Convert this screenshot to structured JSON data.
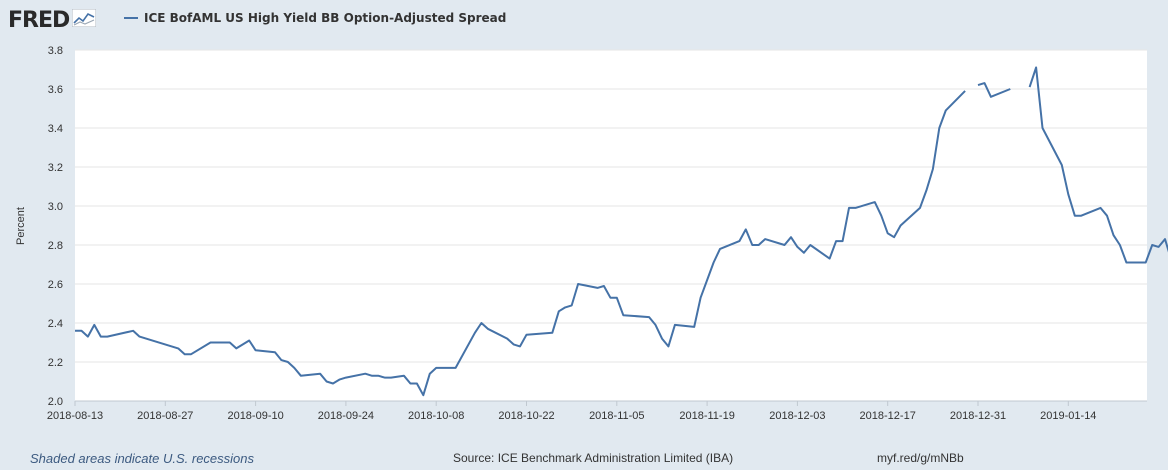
{
  "header": {
    "logo_text": "FRED",
    "logo_icon": "line-chart-icon"
  },
  "footer": {
    "recession_note": "Shaded areas indicate U.S. recessions",
    "source": "Source: ICE Benchmark Administration Limited (IBA)",
    "url": "myf.red/g/mNBb"
  },
  "colors": {
    "line": "#4572a7",
    "background": "#e1e9f0",
    "plot_background": "#ffffff",
    "grid": "#e6e6e6"
  },
  "chart_data": {
    "type": "line",
    "title": "",
    "xlabel": "",
    "ylabel": "Percent",
    "ylim": [
      2.0,
      3.8
    ],
    "xlim": [
      "2018-08-13",
      "2019-01-24"
    ],
    "grid": true,
    "legend_position": "top-left",
    "y_ticks": [
      "2.0",
      "2.2",
      "2.4",
      "2.6",
      "2.8",
      "3.0",
      "3.2",
      "3.4",
      "3.6",
      "3.8"
    ],
    "x_ticks": [
      "2018-08-13",
      "2018-08-27",
      "2018-09-10",
      "2018-09-24",
      "2018-10-08",
      "2018-10-22",
      "2018-11-05",
      "2018-11-19",
      "2018-12-03",
      "2018-12-17",
      "2018-12-31",
      "2019-01-14"
    ],
    "series": [
      {
        "name": "ICE BofAML US High Yield BB Option-Adjusted Spread",
        "segments": [
          [
            [
              "2018-08-13",
              2.36
            ],
            [
              "2018-08-14",
              2.36
            ],
            [
              "2018-08-15",
              2.33
            ],
            [
              "2018-08-16",
              2.39
            ],
            [
              "2018-08-17",
              2.33
            ],
            [
              "2018-08-18",
              2.33
            ],
            [
              "2018-08-22",
              2.36
            ],
            [
              "2018-08-23",
              2.33
            ],
            [
              "2018-08-29",
              2.27
            ],
            [
              "2018-08-30",
              2.24
            ],
            [
              "2018-08-31",
              2.24
            ],
            [
              "2018-09-03",
              2.3
            ],
            [
              "2018-09-06",
              2.3
            ],
            [
              "2018-09-07",
              2.27
            ],
            [
              "2018-09-09",
              2.31
            ],
            [
              "2018-09-10",
              2.26
            ],
            [
              "2018-09-13",
              2.25
            ],
            [
              "2018-09-14",
              2.21
            ],
            [
              "2018-09-15",
              2.2
            ],
            [
              "2018-09-16",
              2.17
            ],
            [
              "2018-09-17",
              2.13
            ],
            [
              "2018-09-20",
              2.14
            ],
            [
              "2018-09-21",
              2.1
            ],
            [
              "2018-09-22",
              2.09
            ],
            [
              "2018-09-23",
              2.11
            ],
            [
              "2018-09-24",
              2.12
            ],
            [
              "2018-09-27",
              2.14
            ],
            [
              "2018-09-28",
              2.13
            ],
            [
              "2018-09-29",
              2.13
            ],
            [
              "2018-09-30",
              2.12
            ],
            [
              "2018-10-01",
              2.12
            ],
            [
              "2018-10-03",
              2.13
            ],
            [
              "2018-10-04",
              2.09
            ],
            [
              "2018-10-05",
              2.09
            ],
            [
              "2018-10-06",
              2.03
            ],
            [
              "2018-10-07",
              2.14
            ],
            [
              "2018-10-08",
              2.17
            ],
            [
              "2018-10-11",
              2.17
            ],
            [
              "2018-10-14",
              2.35
            ],
            [
              "2018-10-15",
              2.4
            ],
            [
              "2018-10-16",
              2.37
            ],
            [
              "2018-10-19",
              2.32
            ],
            [
              "2018-10-20",
              2.29
            ],
            [
              "2018-10-21",
              2.28
            ],
            [
              "2018-10-22",
              2.34
            ],
            [
              "2018-10-26",
              2.35
            ],
            [
              "2018-10-27",
              2.46
            ],
            [
              "2018-10-28",
              2.48
            ],
            [
              "2018-10-29",
              2.49
            ],
            [
              "2018-10-30",
              2.6
            ],
            [
              "2018-11-02",
              2.58
            ],
            [
              "2018-11-03",
              2.59
            ],
            [
              "2018-11-04",
              2.53
            ],
            [
              "2018-11-05",
              2.53
            ],
            [
              "2018-11-06",
              2.44
            ],
            [
              "2018-11-10",
              2.43
            ],
            [
              "2018-11-11",
              2.39
            ],
            [
              "2018-11-12",
              2.32
            ],
            [
              "2018-11-13",
              2.28
            ],
            [
              "2018-11-14",
              2.39
            ],
            [
              "2018-11-17",
              2.38
            ],
            [
              "2018-11-18",
              2.53
            ],
            [
              "2018-11-19",
              2.62
            ],
            [
              "2018-11-20",
              2.71
            ],
            [
              "2018-11-21",
              2.78
            ],
            [
              "2018-11-24",
              2.82
            ],
            [
              "2018-11-25",
              2.88
            ],
            [
              "2018-11-26",
              2.8
            ],
            [
              "2018-11-27",
              2.8
            ],
            [
              "2018-11-28",
              2.83
            ],
            [
              "2018-12-01",
              2.8
            ],
            [
              "2018-12-02",
              2.84
            ],
            [
              "2018-12-03",
              2.79
            ],
            [
              "2018-12-04",
              2.76
            ],
            [
              "2018-12-05",
              2.8
            ],
            [
              "2018-12-08",
              2.73
            ],
            [
              "2018-12-09",
              2.82
            ],
            [
              "2018-12-10",
              2.82
            ],
            [
              "2018-12-11",
              2.99
            ],
            [
              "2018-12-12",
              2.99
            ],
            [
              "2018-12-15",
              3.02
            ],
            [
              "2018-12-16",
              2.95
            ],
            [
              "2018-12-17",
              2.86
            ],
            [
              "2018-12-18",
              2.84
            ],
            [
              "2018-12-19",
              2.9
            ],
            [
              "2018-12-22",
              2.99
            ],
            [
              "2018-12-23",
              3.08
            ],
            [
              "2018-12-24",
              3.19
            ],
            [
              "2018-12-25",
              3.4
            ],
            [
              "2018-12-26",
              3.49
            ],
            [
              "2018-12-29",
              3.59
            ]
          ],
          [
            [
              "2018-12-31",
              3.62
            ],
            [
              "2019-01-01",
              3.63
            ],
            [
              "2019-01-02",
              3.56
            ],
            [
              "2019-01-05",
              3.6
            ]
          ],
          [
            [
              "2019-01-08",
              3.61
            ],
            [
              "2019-01-09",
              3.71
            ],
            [
              "2019-01-10",
              3.4
            ],
            [
              "2019-01-13",
              3.21
            ],
            [
              "2019-01-14",
              3.06
            ],
            [
              "2019-01-15",
              2.95
            ],
            [
              "2019-01-16",
              2.95
            ],
            [
              "2019-01-19",
              2.99
            ],
            [
              "2019-01-20",
              2.95
            ],
            [
              "2019-01-21",
              2.85
            ],
            [
              "2019-01-22",
              2.8
            ],
            [
              "2019-01-23",
              2.71
            ],
            [
              "2019-01-26",
              2.71
            ],
            [
              "2019-01-27",
              2.8
            ],
            [
              "2019-01-28",
              2.79
            ],
            [
              "2019-01-29",
              2.83
            ],
            [
              "2019-01-30",
              2.72
            ]
          ]
        ]
      }
    ]
  }
}
